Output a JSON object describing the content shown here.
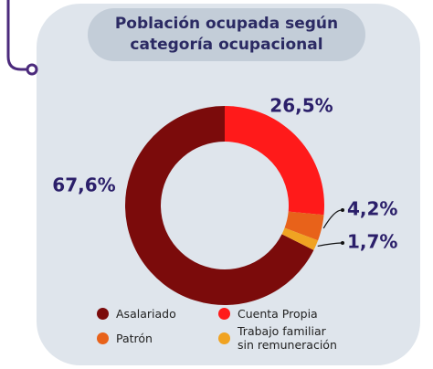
{
  "chart_data": {
    "type": "pie",
    "title": "Población ocupada según categoría ocupacional",
    "categories": [
      "Asalariado",
      "Cuenta Propia",
      "Patrón",
      "Trabajo familiar sin remuneración"
    ],
    "values": [
      67.6,
      26.5,
      4.2,
      1.7
    ],
    "value_labels": [
      "67,6%",
      "26,5%",
      "4,2%",
      "1,7%"
    ],
    "colors": [
      "#7b0b0b",
      "#ff1a1a",
      "#e8621a",
      "#f0a322"
    ],
    "donut": true
  }
}
